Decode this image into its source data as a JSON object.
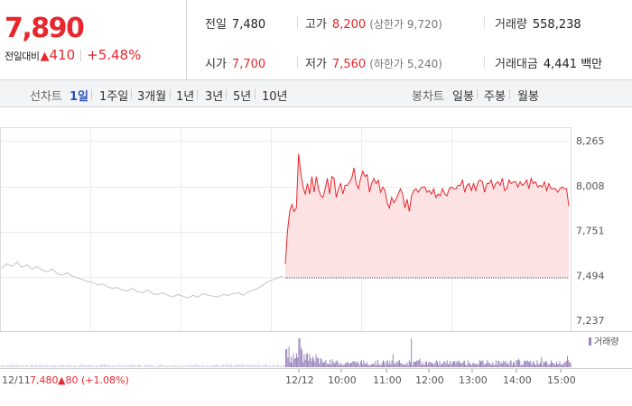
{
  "quote": {
    "price": "7,890",
    "change_label": "전일대비",
    "change_arrow": "▲",
    "change_value": "410",
    "change_pct": "+5.48%",
    "prev_close_label": "전일",
    "prev_close": "7,480",
    "open_label": "시가",
    "open": "7,700",
    "high_label": "고가",
    "high": "8,200",
    "upper_limit": "(상한가 9,720)",
    "low_label": "저가",
    "low": "7,560",
    "lower_limit": "(하한가 5,240)",
    "volume_label": "거래량",
    "volume": "558,238",
    "amount_label": "거래대금",
    "amount": "4,441",
    "amount_unit": "백만"
  },
  "period_bar": {
    "line_title": "선차트",
    "line_options": [
      "1일",
      "1주일",
      "3개월",
      "1년",
      "3년",
      "5년",
      "10년"
    ],
    "line_active": "1일",
    "candle_title": "봉차트",
    "candle_options": [
      "일봉",
      "주봉",
      "월봉"
    ]
  },
  "colors": {
    "up": "#e8262d",
    "down": "#1e53d6",
    "fill": "#fde2e4",
    "prev_line": "#c4c4c4",
    "volume": "#9a85bd",
    "active_tab": "#2b52b8"
  },
  "chart_data": {
    "type": "line",
    "y_ticks": [
      "8,265",
      "8,008",
      "7,751",
      "7,494",
      "7,237"
    ],
    "ylim": [
      7237,
      8265
    ],
    "x_ticks": [
      "12/12",
      "10:00",
      "11:00",
      "12:00",
      "13:00",
      "14:00",
      "15:00"
    ],
    "volume_legend": "거래량",
    "prev_day": {
      "date": "12/11",
      "close": "7,480",
      "change": "▲80",
      "change_pct": "(+1.08%)",
      "values": [
        7535,
        7560,
        7545,
        7570,
        7540,
        7555,
        7530,
        7545,
        7525,
        7515,
        7530,
        7505,
        7495,
        7510,
        7490,
        7480,
        7470,
        7460,
        7455,
        7440,
        7445,
        7430,
        7420,
        7425,
        7410,
        7405,
        7420,
        7400,
        7395,
        7410,
        7390,
        7385,
        7395,
        7380,
        7370,
        7385,
        7375,
        7365,
        7380,
        7370,
        7390,
        7380,
        7375,
        7370,
        7385,
        7380,
        7390,
        7395,
        7380,
        7400,
        7410,
        7420,
        7440,
        7460,
        7470,
        7480,
        7490
      ]
    },
    "today": {
      "base": 7480,
      "values": [
        7560,
        7750,
        7860,
        7900,
        7860,
        7880,
        8190,
        8080,
        8000,
        7960,
        8020,
        7960,
        8060,
        7970,
        8060,
        7990,
        7950,
        7940,
        7990,
        8050,
        7960,
        8060,
        8050,
        7940,
        7990,
        8020,
        7960,
        8010,
        8010,
        8030,
        8050,
        8110,
        8020,
        7990,
        8050,
        8090,
        8060,
        8070,
        7970,
        8020,
        8050,
        8020,
        8040,
        7970,
        8000,
        7980,
        7910,
        7880,
        7940,
        7910,
        7930,
        7960,
        7990,
        7960,
        7880,
        7930,
        7860,
        7950,
        7980,
        7990,
        7970,
        7990,
        8000,
        8000,
        7970,
        7980,
        7960,
        7990,
        7940,
        7960,
        7950,
        7990,
        7960,
        7950,
        7990,
        8000,
        7990,
        7990,
        8010,
        8010,
        8040,
        7970,
        8010,
        8020,
        7980,
        8020,
        7980,
        8030,
        8040,
        8030,
        7970,
        8020,
        8020,
        8040,
        7990,
        8020,
        8030,
        8010,
        8050,
        7980,
        7990,
        8040,
        8020,
        8030,
        8030,
        8000,
        8030,
        8010,
        8020,
        8040,
        7990,
        8050,
        8020,
        8030,
        8000,
        8010,
        8000,
        8030,
        7980,
        8020,
        7990,
        7990,
        7990,
        7970,
        7990,
        8000,
        7990,
        7990,
        7890
      ]
    }
  }
}
